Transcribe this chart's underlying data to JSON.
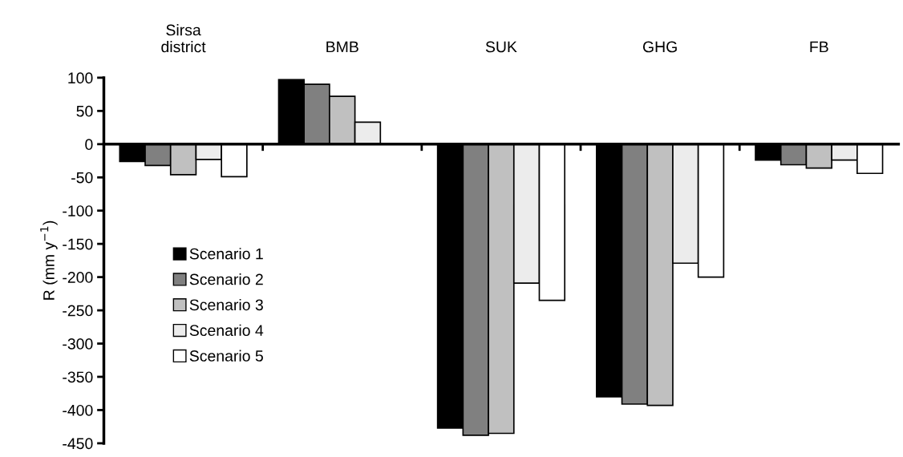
{
  "chart_data": {
    "type": "bar",
    "ylabel": "R (mm y$^{−1}$)",
    "categories": [
      "Sirsa\ndistrict",
      "BMB",
      "SUK",
      "GHG",
      "FB"
    ],
    "series": [
      {
        "name": "Scenario 1",
        "color": "#000000",
        "values": [
          -26,
          97,
          -427,
          -380,
          -24
        ]
      },
      {
        "name": "Scenario 2",
        "color": "#808080",
        "values": [
          -32,
          90,
          -438,
          -391,
          -31
        ]
      },
      {
        "name": "Scenario 3",
        "color": "#c0c0c0",
        "values": [
          -46,
          72,
          -435,
          -393,
          -36
        ]
      },
      {
        "name": "Scenario 4",
        "color": "#ececec",
        "values": [
          -23,
          33,
          -209,
          -179,
          -24
        ]
      },
      {
        "name": "Scenario 5",
        "color": "#ffffff",
        "values": [
          -49,
          1,
          -235,
          -200,
          -44
        ]
      }
    ],
    "ylim": [
      -450,
      100
    ],
    "yticks": [
      100,
      50,
      0,
      -50,
      -100,
      -150,
      -200,
      -250,
      -300,
      -350,
      -400,
      -450
    ],
    "legend": "left"
  }
}
